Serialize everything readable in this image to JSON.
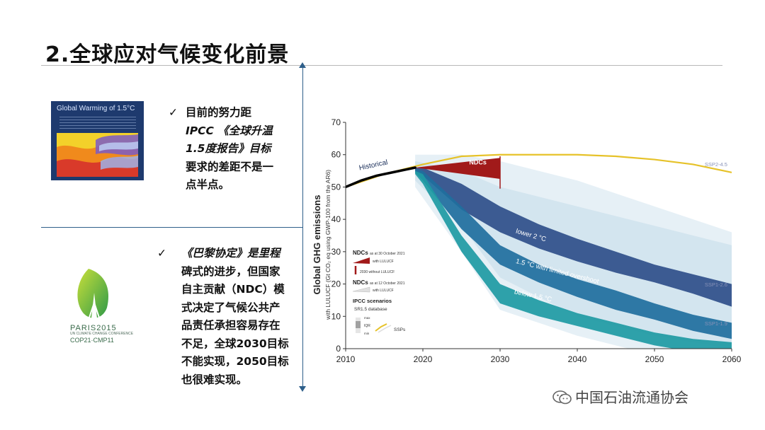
{
  "slide": {
    "title": "2.全球应对气候变化前景"
  },
  "left_panel": {
    "report_cover": {
      "title": "Global Warming of 1.5°C"
    },
    "bullet_1": {
      "check": "✓",
      "lines": [
        "目前的努力距",
        "IPCC 《全球升温",
        "1.5度报告》目标",
        "要求的差距不是一",
        "点半点。"
      ]
    },
    "paris_logo": {
      "name": "PARIS2015",
      "subtitle": "UN CLIMATE CHANGE CONFERENCE",
      "cop": "COP21·CMP11"
    },
    "bullet_2": {
      "check": "✓",
      "lines": [
        "《巴黎协定》是里程",
        "碑式的进步，但国家",
        "自主贡献（NDC）模",
        "式决定了气候公共产",
        "品责任承担容易存在",
        "不足，全球2030目标",
        "不能实现，2050目标",
        "也很难实现。"
      ]
    }
  },
  "chart_data": {
    "type": "area",
    "ylabel": "Global GHG emissions",
    "ylabel_sub": "with LULUCF (Gt CO₂ eq using GWP-100 from the AR6)",
    "xlim": [
      2010,
      2060
    ],
    "ylim": [
      0,
      70
    ],
    "x_ticks": [
      "2010",
      "2020",
      "2030",
      "2040",
      "2050",
      "2060"
    ],
    "y_ticks": [
      "0",
      "10",
      "20",
      "30",
      "40",
      "50",
      "60",
      "70"
    ],
    "grid": false,
    "historical": {
      "label": "Historical",
      "x": [
        2010,
        2012,
        2014,
        2016,
        2018,
        2019
      ],
      "y": [
        50,
        52,
        53.5,
        54.5,
        55.5,
        56
      ]
    },
    "ndc": {
      "label": "NDCs",
      "x": [
        2019,
        2030
      ],
      "upper": [
        56,
        59
      ],
      "lower": [
        56,
        52.5
      ]
    },
    "series": [
      {
        "name": "SSP2-4.5",
        "x": [
          2010,
          2015,
          2020,
          2025,
          2030,
          2035,
          2040,
          2045,
          2050,
          2055,
          2060
        ],
        "values": [
          50,
          54,
          57,
          59.5,
          60,
          60,
          60,
          59.5,
          58.5,
          57,
          54.5
        ]
      }
    ],
    "pathways": [
      {
        "name": "lower 2 °C",
        "x": [
          2019,
          2020,
          2025,
          2030,
          2035,
          2040,
          2045,
          2050,
          2055,
          2060
        ],
        "upper": [
          56,
          56,
          51,
          44,
          38.5,
          34,
          30,
          26,
          23,
          20
        ],
        "lower": [
          55,
          53.5,
          43,
          36,
          31,
          27,
          23.5,
          20.5,
          17,
          13
        ]
      },
      {
        "name": "1.5 °C with limited overshoot",
        "x": [
          2019,
          2020,
          2025,
          2030,
          2035,
          2040,
          2045,
          2050,
          2055,
          2060
        ],
        "upper": [
          55.5,
          55,
          44,
          32,
          26,
          21.5,
          18,
          14,
          10.5,
          8
        ],
        "lower": [
          54.5,
          52,
          37,
          26,
          20.5,
          16,
          12,
          9,
          5.5,
          3
        ]
      },
      {
        "name": "below 1.5 °C",
        "x": [
          2019,
          2020,
          2025,
          2030,
          2035,
          2040,
          2045,
          2050,
          2055,
          2060
        ],
        "upper": [
          55,
          54,
          35,
          20,
          15,
          11,
          8,
          5,
          3,
          2
        ],
        "lower": [
          54,
          51,
          30,
          14,
          10,
          7,
          4,
          1,
          -1,
          -2
        ]
      }
    ],
    "ssp_labels": [
      "SSP2-4.5",
      "SSP1-2.6",
      "SSP1-1.9"
    ],
    "legend": {
      "ndc_header_1": "NDCs",
      "ndc_date_1": "as at 30 October 2021",
      "with_lulucf_1": "with LULUCF",
      "without_lulucf": "2030 without LULUCF",
      "ndc_header_2": "NDCs",
      "ndc_date_2": "as at 12 October 2021",
      "with_lulucf_2": "with LULUCF",
      "ipcc_header": "IPCC scenarios",
      "ipcc_sub": "SR1.5 database",
      "max_label": "max",
      "iqr_label": "IQR",
      "min_label": "min",
      "ssps_label": "SSPs"
    },
    "colors": {
      "ssp": "#e6c229",
      "ndc": "#a11a1a",
      "historical": "#000000",
      "lower2": "#2f4f8a",
      "limited15": "#1f6f9e",
      "below15": "#1e9aa3",
      "envelope": "#9cc3dc"
    }
  },
  "watermark": {
    "text": "中国石油流通协会"
  }
}
